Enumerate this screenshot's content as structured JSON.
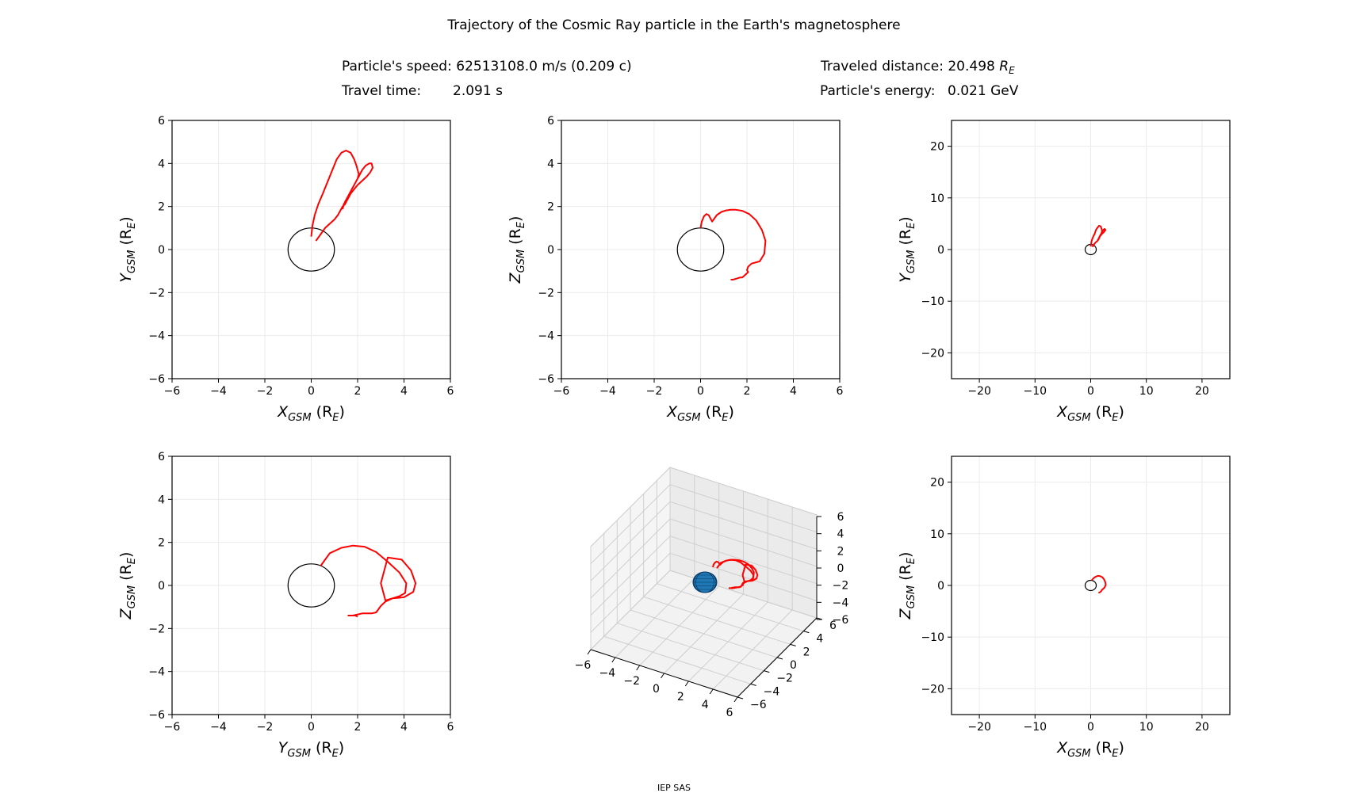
{
  "figure": {
    "title": "Trajectory of the Cosmic Ray particle in the Earth's magnetosphere",
    "speed_label": "Particle's speed:",
    "speed_value": "62513108.0 m/s (0.209 c)",
    "time_label": "Travel time:",
    "time_value": "2.091 s",
    "distance_label": "Traveled distance:",
    "distance_value": "20.498",
    "distance_unit": "R",
    "distance_unit_sub": "E",
    "energy_label": "Particle's energy:",
    "energy_value": "0.021 GeV",
    "footer": "IEP SAS"
  },
  "colors": {
    "trajectory": "#ff0000",
    "earth_outline": "#000000",
    "earth_3d": "#1f77b4",
    "grid": "#ebebeb"
  },
  "chart_data": [
    {
      "type": "line",
      "name": "xy",
      "xlabel_main": "X",
      "xlabel_sub": "GSM",
      "xlabel_unit": "(R",
      "xlabel_unit_sub": "E",
      "xlabel_close": ")",
      "ylabel_main": "Y",
      "ylabel_sub": "GSM",
      "ylabel_unit": "(R",
      "ylabel_unit_sub": "E",
      "ylabel_close": ")",
      "xlim": [
        -6,
        6
      ],
      "ylim": [
        -6,
        6
      ],
      "xticks": [
        -6,
        -4,
        -2,
        0,
        2,
        4,
        6
      ],
      "yticks": [
        -6,
        -4,
        -2,
        0,
        2,
        4,
        6
      ],
      "grid": true,
      "earth_radius": 1,
      "series": [
        {
          "x": [
            0.0,
            0.05,
            0.15,
            0.3,
            0.5,
            0.65,
            0.8,
            0.95,
            1.1,
            1.3,
            1.5,
            1.7,
            1.85,
            1.95,
            2.0,
            2.05,
            2.0,
            1.9,
            1.8,
            1.7,
            1.6,
            1.5,
            1.4,
            1.35,
            1.45,
            1.6,
            1.75,
            1.9,
            2.05,
            2.2,
            2.35,
            2.5,
            2.6,
            2.65,
            2.55,
            2.4,
            2.2,
            2.0,
            1.85,
            1.7,
            1.65,
            1.55,
            1.45,
            1.35,
            1.25,
            1.15,
            1.0,
            0.8,
            0.6,
            0.4,
            0.2
          ],
          "y": [
            0.6,
            1.1,
            1.6,
            2.1,
            2.6,
            3.0,
            3.4,
            3.8,
            4.2,
            4.5,
            4.6,
            4.5,
            4.2,
            3.9,
            3.7,
            3.5,
            3.3,
            3.1,
            2.9,
            2.7,
            2.5,
            2.3,
            2.1,
            1.9,
            2.2,
            2.5,
            2.8,
            3.1,
            3.4,
            3.7,
            3.9,
            4.0,
            4.0,
            3.8,
            3.6,
            3.4,
            3.2,
            3.0,
            2.8,
            2.6,
            2.5,
            2.3,
            2.1,
            2.0,
            1.8,
            1.6,
            1.4,
            1.2,
            1.0,
            0.7,
            0.4
          ]
        }
      ]
    },
    {
      "type": "line",
      "name": "xz",
      "xlabel_main": "X",
      "xlabel_sub": "GSM",
      "xlabel_unit": "(R",
      "xlabel_unit_sub": "E",
      "xlabel_close": ")",
      "ylabel_main": "Z",
      "ylabel_sub": "GSM",
      "ylabel_unit": "(R",
      "ylabel_unit_sub": "E",
      "ylabel_close": ")",
      "xlim": [
        -6,
        6
      ],
      "ylim": [
        -6,
        6
      ],
      "xticks": [
        -6,
        -4,
        -2,
        0,
        2,
        4,
        6
      ],
      "yticks": [
        -6,
        -4,
        -2,
        0,
        2,
        4,
        6
      ],
      "grid": true,
      "earth_radius": 1,
      "series": [
        {
          "x": [
            0.0,
            0.05,
            0.15,
            0.25,
            0.35,
            0.5,
            0.7,
            0.9,
            1.1,
            1.3,
            1.5,
            1.8,
            2.1,
            2.4,
            2.65,
            2.8,
            2.75,
            2.55,
            2.2,
            2.05,
            2.0,
            2.05,
            1.9,
            1.8,
            1.7,
            1.55,
            1.4,
            1.3
          ],
          "y": [
            1.0,
            1.3,
            1.55,
            1.65,
            1.6,
            1.3,
            1.6,
            1.75,
            1.82,
            1.85,
            1.85,
            1.8,
            1.65,
            1.35,
            0.9,
            0.4,
            -0.2,
            -0.55,
            -0.65,
            -0.8,
            -0.95,
            -1.05,
            -1.2,
            -1.3,
            -1.3,
            -1.35,
            -1.4,
            -1.4
          ]
        }
      ]
    },
    {
      "type": "line",
      "name": "xy-wide",
      "xlabel_main": "X",
      "xlabel_sub": "GSM",
      "xlabel_unit": "(R",
      "xlabel_unit_sub": "E",
      "xlabel_close": ")",
      "ylabel_main": "Y",
      "ylabel_sub": "GSM",
      "ylabel_unit": "(R",
      "ylabel_unit_sub": "E",
      "ylabel_close": ")",
      "xlim": [
        -25,
        25
      ],
      "ylim": [
        -25,
        25
      ],
      "xticks": [
        -20,
        -10,
        0,
        10,
        20
      ],
      "yticks": [
        -20,
        -10,
        0,
        10,
        20
      ],
      "grid": true,
      "earth_radius": 1,
      "series": [
        {
          "x": [
            0.0,
            0.15,
            0.3,
            0.5,
            0.7,
            0.95,
            1.2,
            1.5,
            1.8,
            2.0,
            2.05,
            1.9,
            1.7,
            1.5,
            1.4,
            1.6,
            1.9,
            2.2,
            2.5,
            2.65,
            2.4,
            2.0,
            1.7,
            1.55,
            1.35,
            1.15,
            0.9,
            0.6,
            0.3
          ],
          "y": [
            0.6,
            1.6,
            2.1,
            2.6,
            3.0,
            3.8,
            4.2,
            4.6,
            4.5,
            3.9,
            3.5,
            3.1,
            2.7,
            2.3,
            1.9,
            2.5,
            3.1,
            3.7,
            4.0,
            3.8,
            3.4,
            3.0,
            2.6,
            2.3,
            2.0,
            1.6,
            1.4,
            1.0,
            0.5
          ]
        }
      ]
    },
    {
      "type": "line",
      "name": "yz",
      "xlabel_main": "Y",
      "xlabel_sub": "GSM",
      "xlabel_unit": "(R",
      "xlabel_unit_sub": "E",
      "xlabel_close": ")",
      "ylabel_main": "Z",
      "ylabel_sub": "GSM",
      "ylabel_unit": "(R",
      "ylabel_unit_sub": "E",
      "ylabel_close": ")",
      "xlim": [
        -6,
        6
      ],
      "ylim": [
        -6,
        6
      ],
      "xticks": [
        -6,
        -4,
        -2,
        0,
        2,
        4,
        6
      ],
      "yticks": [
        -6,
        -4,
        -2,
        0,
        2,
        4,
        6
      ],
      "grid": true,
      "earth_radius": 1,
      "series": [
        {
          "x": [
            0.4,
            0.8,
            1.3,
            1.8,
            2.3,
            2.8,
            3.3,
            3.8,
            4.1,
            4.05,
            3.8,
            3.5,
            3.2,
            3.0,
            3.3,
            3.9,
            4.3,
            4.5,
            4.4,
            4.0,
            3.5,
            3.2,
            3.0,
            2.8,
            2.6,
            2.2,
            1.8,
            1.6,
            1.9,
            2.0
          ],
          "y": [
            0.9,
            1.5,
            1.75,
            1.85,
            1.8,
            1.55,
            1.1,
            0.6,
            0.1,
            -0.35,
            -0.5,
            -0.6,
            -0.7,
            0.1,
            1.3,
            1.2,
            0.7,
            0.1,
            -0.3,
            -0.55,
            -0.6,
            -0.75,
            -0.95,
            -1.25,
            -1.3,
            -1.3,
            -1.4,
            -1.4,
            -1.4,
            -1.45
          ]
        }
      ]
    },
    {
      "type": "line3d",
      "name": "3d",
      "xticks": [
        -6,
        -4,
        -2,
        0,
        2,
        4,
        6
      ],
      "yticks": [
        -6,
        -4,
        -2,
        0,
        2,
        4,
        6
      ],
      "zticks": [
        -6,
        -4,
        -2,
        0,
        2,
        4,
        6
      ],
      "xlim": [
        -6,
        6
      ],
      "ylim": [
        -6,
        6
      ],
      "zlim": [
        -6,
        6
      ],
      "grid": true
    },
    {
      "type": "line",
      "name": "xz-wide",
      "xlabel_main": "X",
      "xlabel_sub": "GSM",
      "xlabel_unit": "(R",
      "xlabel_unit_sub": "E",
      "xlabel_close": ")",
      "ylabel_main": "Z",
      "ylabel_sub": "GSM",
      "ylabel_unit": "(R",
      "ylabel_unit_sub": "E",
      "ylabel_close": ")",
      "xlim": [
        -25,
        25
      ],
      "ylim": [
        -25,
        25
      ],
      "xticks": [
        -20,
        -10,
        0,
        10,
        20
      ],
      "yticks": [
        -20,
        -10,
        0,
        10,
        20
      ],
      "grid": true,
      "earth_radius": 1,
      "series": [
        {
          "x": [
            0.2,
            0.5,
            0.9,
            1.3,
            1.7,
            2.1,
            2.4,
            2.6,
            2.7,
            2.5,
            2.2,
            2.0,
            1.9,
            1.7,
            1.5,
            1.4
          ],
          "y": [
            1.0,
            1.4,
            1.7,
            1.85,
            1.8,
            1.6,
            1.2,
            0.7,
            0.1,
            -0.4,
            -0.7,
            -0.9,
            -1.1,
            -1.3,
            -1.4,
            -1.4
          ]
        }
      ]
    }
  ]
}
